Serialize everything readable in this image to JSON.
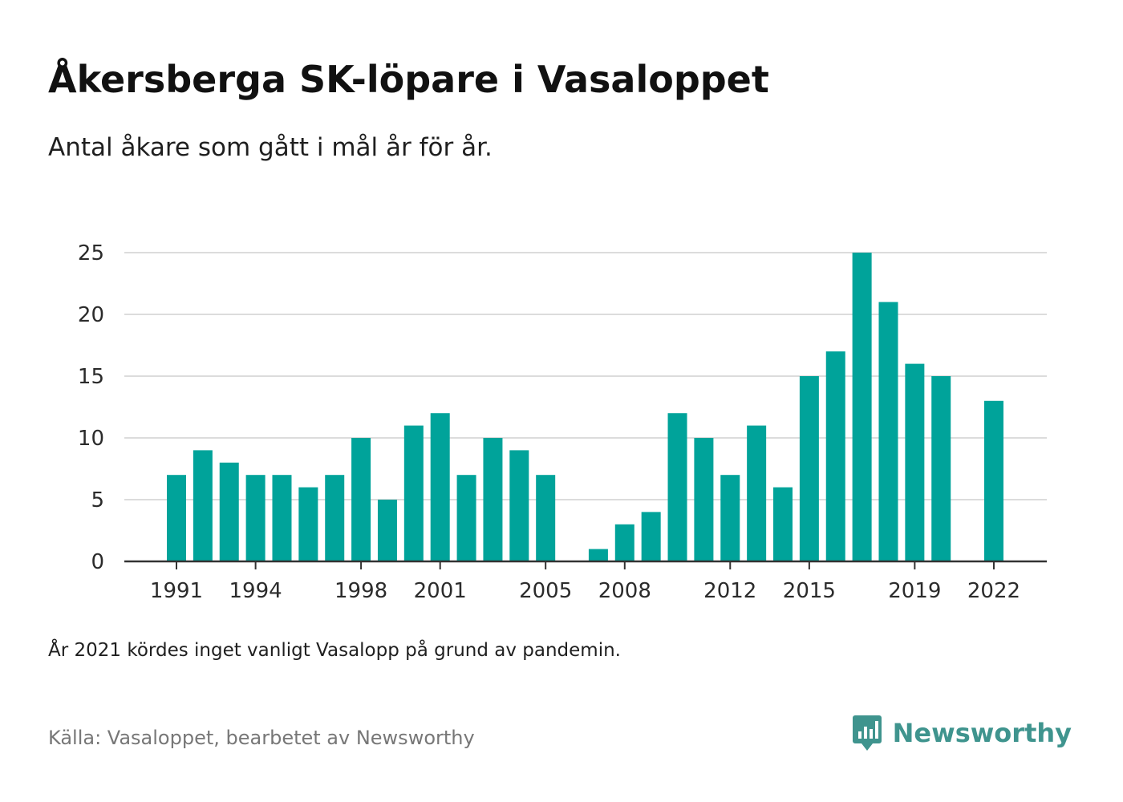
{
  "title": "Åkersberga SK-löpare i Vasaloppet",
  "subtitle": "Antal åkare som gått i mål år för år.",
  "note": "År 2021 kördes inget vanligt Vasalopp på grund av pandemin.",
  "source": "Källa: Vasaloppet, bearbetet av Newsworthy",
  "brand": {
    "name": "Newsworthy",
    "logo_icon": "newsworthy-logo-icon",
    "color": "#3f948e"
  },
  "colors": {
    "bar": "#00a39a",
    "grid": "#dcdcdc",
    "axis": "#333333"
  },
  "chart_data": {
    "type": "bar",
    "categories": [
      1991,
      1992,
      1993,
      1994,
      1995,
      1996,
      1997,
      1998,
      1999,
      2000,
      2001,
      2002,
      2003,
      2004,
      2005,
      2006,
      2007,
      2008,
      2009,
      2010,
      2011,
      2012,
      2013,
      2014,
      2015,
      2016,
      2017,
      2018,
      2019,
      2020,
      2021,
      2022
    ],
    "values": [
      7,
      9,
      8,
      7,
      7,
      6,
      7,
      10,
      5,
      11,
      12,
      7,
      10,
      9,
      7,
      0,
      1,
      3,
      4,
      12,
      10,
      7,
      11,
      6,
      15,
      17,
      25,
      21,
      16,
      15,
      null,
      13
    ],
    "x_tick_labels": [
      "1991",
      "1994",
      "1998",
      "2001",
      "2005",
      "2008",
      "2012",
      "2015",
      "2019",
      "2022"
    ],
    "y_ticks": [
      0,
      5,
      10,
      15,
      20,
      25
    ],
    "ylim": [
      0,
      25
    ],
    "grid": true,
    "xlabel": "",
    "ylabel": ""
  }
}
